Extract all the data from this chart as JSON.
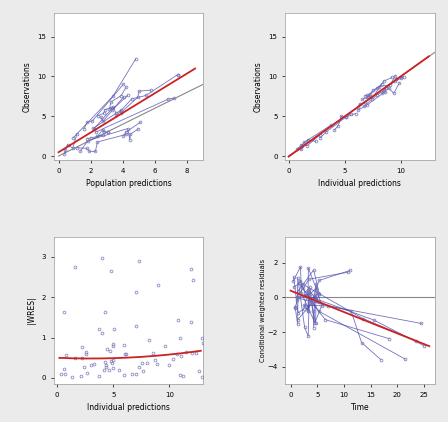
{
  "bg_color": "#ebebeb",
  "plot_bg": "#ffffff",
  "point_color": "#7777bb",
  "line_color_blue": "#4444aa",
  "line_color_red": "#cc2222",
  "line_color_gray": "#888888",
  "seed": 7,
  "plot1": {
    "xlabel": "Population predictions",
    "ylabel": "Observations",
    "xlim": [
      -0.3,
      9
    ],
    "ylim": [
      -0.5,
      18
    ],
    "xticks": [
      0,
      2,
      4,
      6,
      8
    ],
    "yticks": [
      0,
      5,
      10,
      15
    ]
  },
  "plot2": {
    "xlabel": "Individual predictions",
    "ylabel": "Observations",
    "xlim": [
      -0.3,
      13
    ],
    "ylim": [
      -0.5,
      18
    ],
    "xticks": [
      0,
      5,
      10
    ],
    "yticks": [
      0,
      5,
      10,
      15
    ]
  },
  "plot3": {
    "xlabel": "Individual predictions",
    "ylabel": "|WRES|",
    "xlim": [
      -0.3,
      13
    ],
    "ylim": [
      -0.15,
      3.5
    ],
    "xticks": [
      0,
      5,
      10
    ],
    "yticks": [
      0,
      1,
      2,
      3
    ]
  },
  "plot4": {
    "xlabel": "Time",
    "ylabel": "Conditional weighted residuals",
    "xlim": [
      -1,
      27
    ],
    "ylim": [
      -5,
      3.5
    ],
    "xticks": [
      0,
      5,
      10,
      15,
      20,
      25
    ],
    "yticks": [
      -4,
      -2,
      0,
      2
    ],
    "hline": 0
  }
}
